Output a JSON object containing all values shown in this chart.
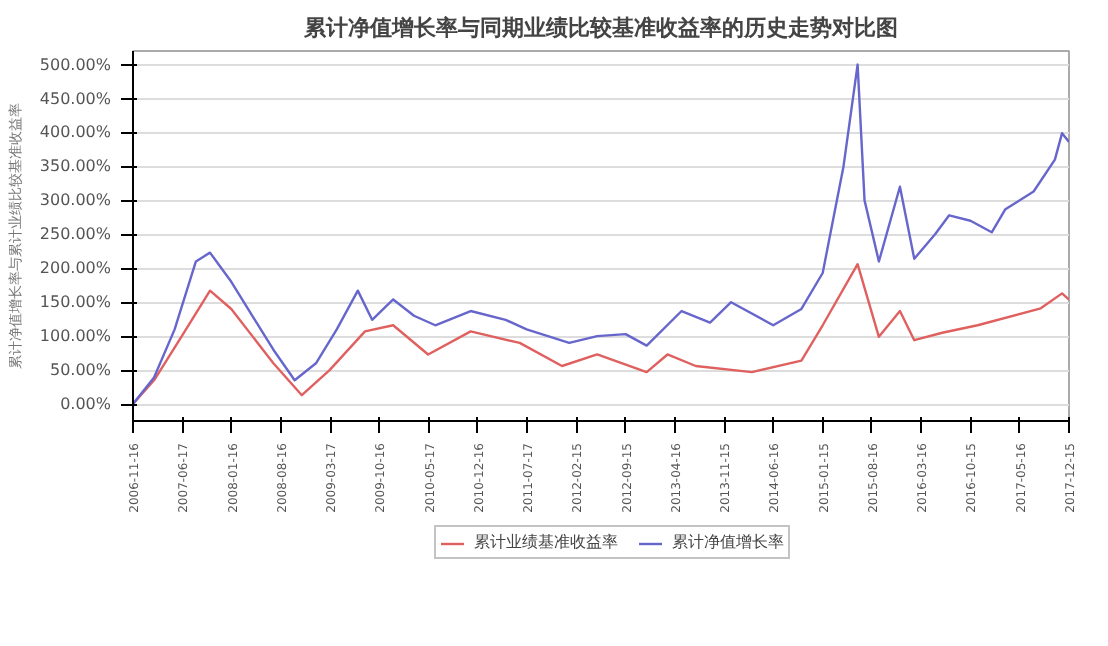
{
  "chart_data": {
    "type": "line",
    "title": "累计净值增长率与同期业绩比较基准收益率的历史走势对比图",
    "ylabel": "累计净值增长率与累计业绩比较基准收益率",
    "ylim": [
      -25,
      520
    ],
    "yticks": [
      {
        "value": 0,
        "label": "0.00%"
      },
      {
        "value": 50,
        "label": "50.00%"
      },
      {
        "value": 100,
        "label": "100.00%"
      },
      {
        "value": 150,
        "label": "150.00%"
      },
      {
        "value": 200,
        "label": "200.00%"
      },
      {
        "value": 250,
        "label": "250.00%"
      },
      {
        "value": 300,
        "label": "300.00%"
      },
      {
        "value": 350,
        "label": "350.00%"
      },
      {
        "value": 400,
        "label": "400.00%"
      },
      {
        "value": 450,
        "label": "450.00%"
      },
      {
        "value": 500,
        "label": "500.00%"
      }
    ],
    "xlim": [
      "2006-11-16",
      "2017-12-15"
    ],
    "xticks": [
      "2006-11-16",
      "2007-06-17",
      "2008-01-16",
      "2008-08-16",
      "2009-03-17",
      "2009-10-16",
      "2010-05-17",
      "2010-12-16",
      "2011-07-17",
      "2012-02-15",
      "2012-09-15",
      "2013-04-16",
      "2013-11-15",
      "2014-06-16",
      "2015-01-15",
      "2015-08-16",
      "2016-03-16",
      "2016-10-15",
      "2017-05-16",
      "2017-12-15"
    ],
    "grid": "y",
    "legend": "bottom",
    "line_style": "solid",
    "series": [
      {
        "name": "累计业绩基准收益率",
        "color": "#e06060",
        "x": [
          "2006-11-16",
          "2007-02",
          "2007-06",
          "2007-10",
          "2008-01",
          "2008-04",
          "2008-07",
          "2008-11",
          "2009-03",
          "2009-08",
          "2009-12",
          "2010-05",
          "2010-11",
          "2011-06",
          "2011-12",
          "2012-05",
          "2012-12",
          "2013-03",
          "2013-07",
          "2014-03",
          "2014-10",
          "2015-01",
          "2015-06",
          "2015-09",
          "2015-12",
          "2016-02",
          "2016-06",
          "2016-11",
          "2017-08",
          "2017-11",
          "2017-12-15"
        ],
        "values": [
          0,
          35,
          100,
          167,
          140,
          100,
          60,
          13,
          50,
          107,
          116,
          73,
          107,
          90,
          56,
          73,
          47,
          73,
          56,
          47,
          64,
          116,
          206,
          99,
          137,
          94,
          105,
          116,
          141,
          163,
          154
        ]
      },
      {
        "name": "累计净值增长率",
        "color": "#6666cc",
        "x": [
          "2006-11-16",
          "2007-02",
          "2007-05",
          "2007-08",
          "2007-10",
          "2008-01",
          "2008-04",
          "2008-07",
          "2008-10",
          "2009-01",
          "2009-04",
          "2009-07",
          "2009-09",
          "2009-12",
          "2010-03",
          "2010-06",
          "2010-11",
          "2011-04",
          "2011-07",
          "2012-01",
          "2012-05",
          "2012-09",
          "2012-12",
          "2013-05",
          "2013-09",
          "2013-12",
          "2014-06",
          "2014-10",
          "2015-01",
          "2015-04",
          "2015-06",
          "2015-07",
          "2015-09",
          "2015-12",
          "2016-02",
          "2016-05",
          "2016-07",
          "2016-10",
          "2017-01",
          "2017-03",
          "2017-07",
          "2017-10",
          "2017-11",
          "2017-12-15"
        ],
        "values": [
          0,
          39,
          110,
          210,
          223,
          180,
          130,
          80,
          35,
          60,
          110,
          167,
          124,
          154,
          130,
          116,
          137,
          124,
          110,
          90,
          100,
          103,
          86,
          137,
          120,
          150,
          116,
          140,
          193,
          350,
          500,
          300,
          210,
          320,
          214,
          250,
          278,
          270,
          253,
          287,
          313,
          360,
          399,
          386
        ]
      }
    ]
  }
}
